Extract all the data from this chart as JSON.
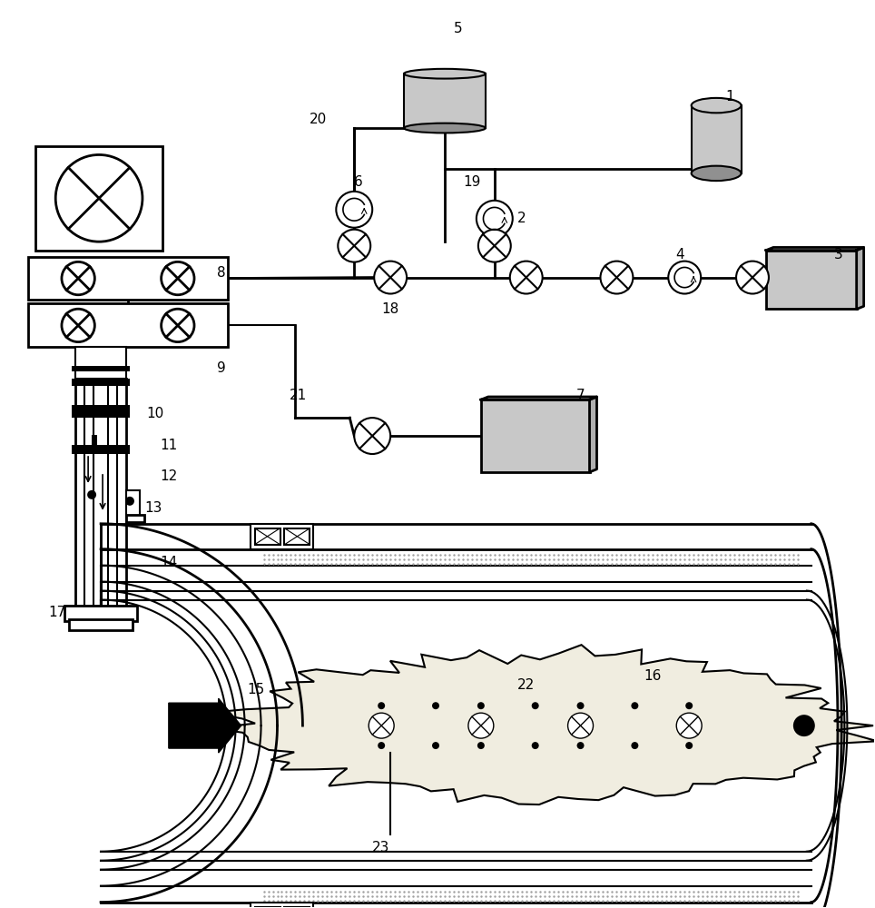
{
  "bg_color": "#ffffff",
  "lc": "#000000",
  "gray_light": "#c8c8c8",
  "gray_dark": "#909090",
  "gray_box": "#b0b0b0",
  "sand_dot": "#a0a0a0",
  "figsize": [
    9.64,
    10.0
  ],
  "dpi": 100
}
